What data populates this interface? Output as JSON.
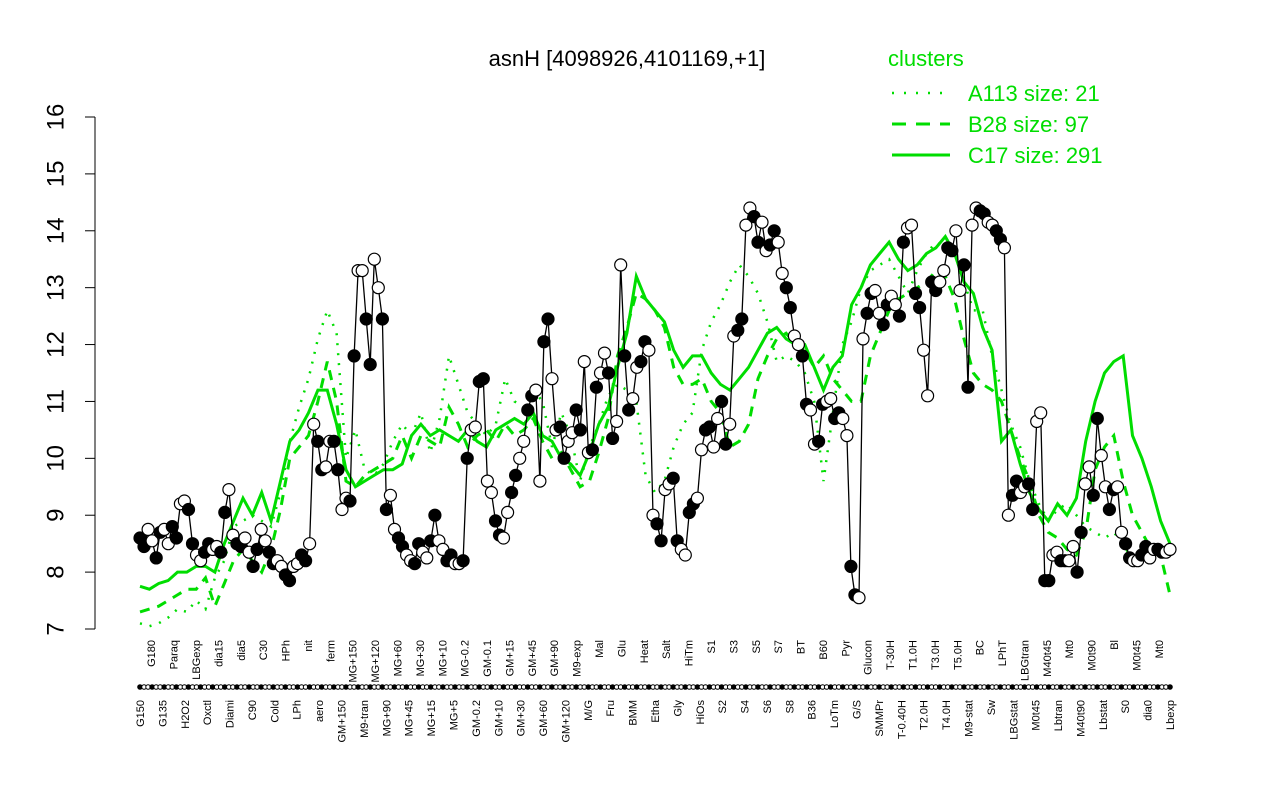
{
  "chart_data": {
    "type": "line",
    "title": "asnH [4098926,4101169,+1]",
    "xlabel": "",
    "ylabel": "",
    "ylim": [
      7,
      16
    ],
    "yticks": [
      7,
      8,
      9,
      10,
      11,
      12,
      13,
      14,
      15,
      16
    ],
    "grid": false,
    "legend_placement": "top-right",
    "x_tick_labels": [
      "G150",
      "G180",
      "G135",
      "Paraq",
      "H2O2",
      "LBGexp",
      "Oxctl",
      "dia15",
      "Diami",
      "dia5",
      "C90",
      "C30",
      "Cold",
      "HPh",
      "LPh",
      "nit",
      "aero",
      "ferm",
      "GM+150",
      "MG+150",
      "M9-tran",
      "MG+120",
      "MG+90",
      "MG+60",
      "MG+45",
      "MG+30",
      "MG+15",
      "MG+10",
      "MG+5",
      "MG-0.2",
      "GM-0.2",
      "GM-0.1",
      "GM+10",
      "GM+15",
      "GM+30",
      "GM+45",
      "GM+60",
      "GM+90",
      "GM+120",
      "M9-exp",
      "M/G",
      "Mal",
      "Fru",
      "Glu",
      "BMM",
      "Heat",
      "Etha",
      "Salt",
      "Gly",
      "HiTm",
      "HiOs",
      "S1",
      "S2",
      "S3",
      "S4",
      "S5",
      "S6",
      "S7",
      "S8",
      "BT",
      "B36",
      "B60",
      "LoTm",
      "Pyr",
      "G/S",
      "Glucon",
      "SMMPr",
      "T-30H",
      "T-0.40H",
      "T1.0H",
      "T2.0H",
      "T3.0H",
      "T4.0H",
      "T5.0H",
      "M9-stat",
      "BC",
      "Sw",
      "LPhT",
      "LBGstat",
      "LBGtran",
      "M0t45",
      "M40t45",
      "Lbtran",
      "Mt0",
      "M40t90",
      "M0t90",
      "Lbstat",
      "Bl",
      "S0",
      "M0t45",
      "dia0",
      "Mt0",
      "Lbexp"
    ],
    "x_label_sample": [
      "G150",
      "G180",
      "G135",
      "Paraq",
      "H2O2",
      "LBGexp",
      "Oxctl",
      "dia15",
      "Diami",
      "dia5",
      "C90",
      "C30",
      "Cold",
      "HPh",
      "LPh",
      "nit",
      "aero",
      "ferm",
      "GM+150",
      "MG+150",
      "M9-tran",
      "MG+120",
      "M/G",
      "Mal",
      "Fru",
      "Glu",
      "BMM",
      "Heat",
      "Etha",
      "Salt",
      "Gly",
      "HiTm",
      "HiOs",
      "S1",
      "S2",
      "S3",
      "S4",
      "S5",
      "S6",
      "S7",
      "S8",
      "BT",
      "B36",
      "B60",
      "LoTm",
      "Pyr",
      "G/S",
      "Glucon",
      "SMMPr",
      "M9-stat",
      "BC",
      "Sw",
      "LPhT",
      "LBGstat",
      "LBGtran",
      "M0t45",
      "M40t45",
      "Lbtran",
      "Mt0",
      "M40t90",
      "M0t90",
      "Lbstat",
      "Bl",
      "S0",
      "dia0",
      "Lbexp"
    ],
    "series": [
      {
        "name": "asnH",
        "style": "points-line",
        "values": [
          8.6,
          8.45,
          8.75,
          8.55,
          8.25,
          8.7,
          8.75,
          8.5,
          8.8,
          8.6,
          9.2,
          9.25,
          9.1,
          8.5,
          8.3,
          8.2,
          8.35,
          8.5,
          8.4,
          8.45,
          8.35,
          9.05,
          9.45,
          8.65,
          8.5,
          8.45,
          8.6,
          8.35,
          8.1,
          8.4,
          8.75,
          8.55,
          8.35,
          8.15,
          8.2,
          8.1,
          7.95,
          7.85,
          8.1,
          8.15,
          8.3,
          8.2,
          8.5,
          10.6,
          10.3,
          9.8,
          9.85,
          10.3,
          10.3,
          9.8,
          9.1,
          9.3,
          9.25,
          11.8,
          13.3,
          13.3,
          12.45,
          11.65,
          13.5,
          13.0,
          12.45,
          9.1,
          9.35,
          8.75,
          8.6,
          8.45,
          8.3,
          8.2,
          8.15,
          8.5,
          8.35,
          8.25,
          8.55,
          9.0,
          8.55,
          8.4,
          8.2,
          8.3,
          8.15,
          8.15,
          8.2,
          10.0,
          10.5,
          10.55,
          11.35,
          11.4,
          9.6,
          9.4,
          8.9,
          8.65,
          8.6,
          9.05,
          9.4,
          9.7,
          10.0,
          10.3,
          10.85,
          11.1,
          11.2,
          9.6,
          12.05,
          12.45,
          11.4,
          10.5,
          10.55,
          10.0,
          10.3,
          10.45,
          10.85,
          10.5,
          11.7,
          10.1,
          10.15,
          11.25,
          11.5,
          11.85,
          11.5,
          10.35,
          10.65,
          13.4,
          11.8,
          10.85,
          11.05,
          11.6,
          11.7,
          12.05,
          11.9,
          9.0,
          8.85,
          8.55,
          9.45,
          9.55,
          9.65,
          8.55,
          8.4,
          8.3,
          9.05,
          9.2,
          9.3,
          10.15,
          10.5,
          10.55,
          10.2,
          10.7,
          11.0,
          10.25,
          10.6,
          12.15,
          12.25,
          12.45,
          14.1,
          14.4,
          14.25,
          13.8,
          14.15,
          13.65,
          13.75,
          14.0,
          13.8,
          13.25,
          13.0,
          12.65,
          12.15,
          12.0,
          11.8,
          10.95,
          10.85,
          10.25,
          10.3,
          10.95,
          11.0,
          11.05,
          10.7,
          10.8,
          10.7,
          10.4,
          8.1,
          7.6,
          7.55,
          12.1,
          12.55,
          12.9,
          12.95,
          12.55,
          12.35,
          12.7,
          12.85,
          12.7,
          12.5,
          13.8,
          14.05,
          14.1,
          12.9,
          12.65,
          11.9,
          11.1,
          13.1,
          12.95,
          13.1,
          13.3,
          13.7,
          13.65,
          14.0,
          12.95,
          13.4,
          11.25,
          14.1,
          14.4,
          14.35,
          14.3,
          14.15,
          14.1,
          14.0,
          13.85,
          13.7,
          9.0,
          9.35,
          9.6,
          9.4,
          9.5,
          9.55,
          9.1,
          10.65,
          10.8,
          7.85,
          7.85,
          8.3,
          8.35,
          8.2,
          8.2,
          8.2,
          8.45,
          8.0,
          8.7,
          9.55,
          9.85,
          9.35,
          10.7,
          10.05,
          9.5,
          9.1,
          9.45,
          9.5,
          8.7,
          8.5,
          8.25,
          8.2,
          8.2,
          8.3,
          8.45,
          8.25,
          8.4,
          8.4,
          8.35,
          8.35,
          8.4
        ]
      },
      {
        "name": "A113 size: 21",
        "style": "dotted",
        "values": [
          7.1,
          7.05,
          7.1,
          7.2,
          7.35,
          7.3,
          7.5,
          7.35,
          7.9,
          8.2,
          8.8,
          8.9,
          9.0,
          8.9,
          8.8,
          9.4,
          10.3,
          10.9,
          11.4,
          12.1,
          12.6,
          12.2,
          10.0,
          10.5,
          9.8,
          9.7,
          9.9,
          10.3,
          10.6,
          10.4,
          10.8,
          10.1,
          10.7,
          11.8,
          11.3,
          10.8,
          10.6,
          10.4,
          10.6,
          11.4,
          11.0,
          10.9,
          11.2,
          11.0,
          10.2,
          10.8,
          10.4,
          9.6,
          10.2,
          10.6,
          11.1,
          11.3,
          11.2,
          11.0,
          9.7,
          9.4,
          9.6,
          10.2,
          10.6,
          10.8,
          11.9,
          12.4,
          12.7,
          13.1,
          13.4,
          13.2,
          12.9,
          12.4,
          11.7,
          11.8,
          11.7,
          11.5,
          11.0,
          9.6,
          10.8,
          12.0,
          12.4,
          13.0,
          13.3,
          13.4,
          13.5,
          13.2,
          12.9,
          13.3,
          13.6,
          13.8,
          13.7,
          13.6,
          13.1,
          12.6,
          12.6,
          11.8,
          11.2,
          10.6,
          10.2,
          9.6,
          9.2,
          8.9,
          9.1,
          9.2,
          9.0,
          8.8,
          8.7,
          8.6,
          8.7,
          8.5,
          8.2,
          8.2,
          8.2,
          8.4,
          8.5
        ]
      },
      {
        "name": "B28 size: 97",
        "style": "dashed",
        "values": [
          7.3,
          7.35,
          7.4,
          7.5,
          7.6,
          7.7,
          7.7,
          7.9,
          7.4,
          7.8,
          8.2,
          8.4,
          8.2,
          8.0,
          8.4,
          9.1,
          10.0,
          10.2,
          10.4,
          11.0,
          11.7,
          11.0,
          9.6,
          9.5,
          9.7,
          9.8,
          9.9,
          10.0,
          10.4,
          10.0,
          10.4,
          10.3,
          10.2,
          10.9,
          10.6,
          10.2,
          10.4,
          10.5,
          10.3,
          10.6,
          10.4,
          10.5,
          10.7,
          10.3,
          10.0,
          10.1,
          9.8,
          9.5,
          9.6,
          10.1,
          10.7,
          11.8,
          12.3,
          12.9,
          12.8,
          12.6,
          12.3,
          11.6,
          11.3,
          11.3,
          11.4,
          11.0,
          10.8,
          10.2,
          10.3,
          10.6,
          11.4,
          11.8,
          12.1,
          12.2,
          12.0,
          11.9,
          11.6,
          11.8,
          11.4,
          11.2,
          11.0,
          11.0,
          11.8,
          12.2,
          12.6,
          12.8,
          12.9,
          13.0,
          13.1,
          13.3,
          13.2,
          12.8,
          12.1,
          11.5,
          11.3,
          11.2,
          11.0,
          10.5,
          10.0,
          9.6,
          9.0,
          8.7,
          8.6,
          8.4,
          8.3,
          8.7,
          9.8,
          10.2,
          10.4,
          9.6,
          9.0,
          8.7,
          8.4,
          8.3,
          7.6
        ]
      },
      {
        "name": "C17 size: 291",
        "style": "solid",
        "values": [
          7.75,
          7.7,
          7.8,
          7.85,
          8.0,
          8.0,
          8.1,
          8.1,
          8.0,
          8.5,
          8.9,
          9.3,
          9.0,
          9.4,
          8.9,
          9.6,
          10.3,
          10.5,
          10.8,
          11.2,
          11.2,
          10.6,
          9.8,
          9.5,
          9.6,
          9.7,
          9.8,
          9.8,
          9.9,
          10.4,
          10.6,
          10.4,
          10.5,
          10.4,
          10.3,
          10.5,
          10.3,
          10.2,
          10.5,
          10.6,
          10.7,
          10.6,
          10.8,
          10.4,
          10.3,
          10.0,
          9.9,
          9.7,
          10.1,
          10.6,
          10.9,
          11.6,
          12.2,
          13.2,
          12.8,
          12.6,
          12.4,
          11.9,
          11.6,
          11.8,
          11.8,
          11.5,
          11.3,
          11.2,
          11.4,
          11.6,
          11.9,
          12.2,
          12.3,
          12.1,
          12.0,
          12.0,
          11.6,
          11.2,
          11.6,
          11.8,
          12.7,
          13.0,
          13.4,
          13.6,
          13.8,
          13.5,
          13.3,
          13.4,
          13.6,
          13.7,
          13.9,
          13.6,
          13.1,
          12.9,
          12.3,
          11.9,
          10.3,
          10.5,
          9.9,
          9.4,
          9.1,
          8.9,
          9.2,
          9.0,
          9.3,
          10.3,
          11.0,
          11.5,
          11.7,
          11.8,
          10.4,
          10.0,
          9.5,
          8.9,
          8.5
        ]
      }
    ],
    "legend": {
      "title": "clusters",
      "entries": [
        {
          "label": "A113 size: 21",
          "style": "dotted"
        },
        {
          "label": "B28 size: 97",
          "style": "dashed"
        },
        {
          "label": "C17 size: 291",
          "style": "solid"
        }
      ]
    },
    "colors": {
      "points_line": "#000000",
      "cluster": "#00dd00",
      "point_fill_open": "#ffffff",
      "point_fill_filled": "#000000"
    }
  }
}
